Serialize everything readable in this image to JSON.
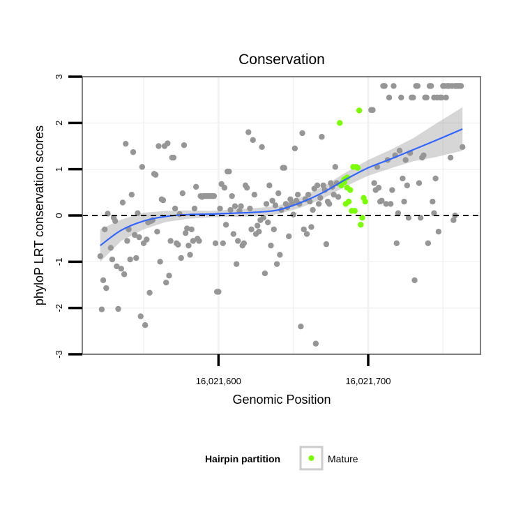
{
  "chart_data": {
    "type": "scatter",
    "title": "Conservation",
    "xlabel": "Genomic Position",
    "ylabel": "phyloP LRT conservation scores",
    "xlim": [
      16021509,
      16021775
    ],
    "ylim": [
      -3,
      3
    ],
    "x_ticks": [
      16021600,
      16021700
    ],
    "x_tick_labels": [
      "16,021,600",
      "16,021,700"
    ],
    "y_ticks": [
      -3,
      -2,
      -1,
      0,
      1,
      2,
      3
    ],
    "y_tick_labels": [
      "-3",
      "-2",
      "-1",
      "0",
      "1",
      "2",
      "3"
    ],
    "reference_line": {
      "y": 0,
      "style": "dashed",
      "color": "#000000"
    },
    "grid": true,
    "background_color": "#ffffff",
    "grid_color": "#f2f2f2",
    "legend": {
      "title": "Hairpin partition",
      "position": "bottom",
      "entries": [
        {
          "label": "Mature",
          "color": "#7cfc00"
        }
      ]
    },
    "series": [
      {
        "role": "other",
        "color": "#969696",
        "points": [
          [
            16021521,
            -0.88
          ],
          [
            16021522,
            -2.03
          ],
          [
            16021523,
            -1.4
          ],
          [
            16021524,
            -0.3
          ],
          [
            16021525,
            -1.57
          ],
          [
            16021526,
            0.04
          ],
          [
            16021528,
            -0.7
          ],
          [
            16021529,
            -0.95
          ],
          [
            16021530,
            -0.05
          ],
          [
            16021531,
            -0.12
          ],
          [
            16021532,
            -1.1
          ],
          [
            16021533,
            -2.02
          ],
          [
            16021535,
            -1.15
          ],
          [
            16021536,
            0.28
          ],
          [
            16021537,
            -1.27
          ],
          [
            16021538,
            1.55
          ],
          [
            16021539,
            -0.55
          ],
          [
            16021540,
            -0.3
          ],
          [
            16021541,
            -0.95
          ],
          [
            16021542,
            0.45
          ],
          [
            16021543,
            1.37
          ],
          [
            16021544,
            -0.42
          ],
          [
            16021545,
            -0.92
          ],
          [
            16021546,
            0.05
          ],
          [
            16021547,
            -0.47
          ],
          [
            16021548,
            -2.18
          ],
          [
            16021549,
            1.05
          ],
          [
            16021550,
            -0.6
          ],
          [
            16021551,
            -2.37
          ],
          [
            16021552,
            -0.52
          ],
          [
            16021553,
            -0.15
          ],
          [
            16021554,
            -1.67
          ],
          [
            16021555,
            -0.12
          ],
          [
            16021556,
            -0.1
          ],
          [
            16021557,
            0.9
          ],
          [
            16021558,
            0.88
          ],
          [
            16021559,
            -0.35
          ],
          [
            16021560,
            1.5
          ],
          [
            16021561,
            -1.0
          ],
          [
            16021562,
            0.35
          ],
          [
            16021563,
            0.33
          ],
          [
            16021564,
            1.5
          ],
          [
            16021565,
            -1.45
          ],
          [
            16021566,
            1.56
          ],
          [
            16021567,
            -1.3
          ],
          [
            16021568,
            -0.55
          ],
          [
            16021569,
            1.25
          ],
          [
            16021570,
            1.25
          ],
          [
            16021571,
            0.15
          ],
          [
            16021572,
            -0.6
          ],
          [
            16021573,
            -0.63
          ],
          [
            16021574,
            0.03
          ],
          [
            16021575,
            -0.92
          ],
          [
            16021576,
            0.48
          ],
          [
            16021577,
            1.52
          ],
          [
            16021578,
            -0.38
          ],
          [
            16021579,
            -0.28
          ],
          [
            16021580,
            -0.65
          ],
          [
            16021581,
            -0.85
          ],
          [
            16021582,
            -0.3
          ],
          [
            16021583,
            -0.55
          ],
          [
            16021584,
            0.15
          ],
          [
            16021585,
            0.62
          ],
          [
            16021586,
            -0.5
          ],
          [
            16021587,
            -0.55
          ],
          [
            16021588,
            0.42
          ],
          [
            16021589,
            0.4
          ],
          [
            16021590,
            0.42
          ],
          [
            16021591,
            0.42
          ],
          [
            16021592,
            0.42
          ],
          [
            16021593,
            0.42
          ],
          [
            16021594,
            0.42
          ],
          [
            16021595,
            0.42
          ],
          [
            16021596,
            0.42
          ],
          [
            16021597,
            0.42
          ],
          [
            16021598,
            -0.6
          ],
          [
            16021599,
            -1.65
          ],
          [
            16021600,
            -1.65
          ],
          [
            16021601,
            0.15
          ],
          [
            16021602,
            0.68
          ],
          [
            16021603,
            -0.6
          ],
          [
            16021604,
            0.6
          ],
          [
            16021605,
            -0.2
          ],
          [
            16021606,
            0.95
          ],
          [
            16021607,
            0.95
          ],
          [
            16021608,
            0.12
          ],
          [
            16021609,
            0.42
          ],
          [
            16021610,
            -0.4
          ],
          [
            16021611,
            0.2
          ],
          [
            16021612,
            -1.05
          ],
          [
            16021613,
            -0.55
          ],
          [
            16021614,
            0.1
          ],
          [
            16021615,
            0.2
          ],
          [
            16021616,
            -0.65
          ],
          [
            16021617,
            -0.6
          ],
          [
            16021618,
            0.65
          ],
          [
            16021619,
            0.6
          ],
          [
            16021620,
            1.8
          ],
          [
            16021621,
            0.15
          ],
          [
            16021622,
            -0.3
          ],
          [
            16021623,
            1.63
          ],
          [
            16021624,
            0.45
          ],
          [
            16021625,
            -0.4
          ],
          [
            16021626,
            -0.22
          ],
          [
            16021627,
            -0.35
          ],
          [
            16021628,
            -0.1
          ],
          [
            16021629,
            1.48
          ],
          [
            16021630,
            -0.05
          ],
          [
            16021631,
            -1.25
          ],
          [
            16021632,
            0.25
          ],
          [
            16021633,
            -0.15
          ],
          [
            16021634,
            0.65
          ],
          [
            16021635,
            -0.65
          ],
          [
            16021636,
            0.32
          ],
          [
            16021637,
            -0.3
          ],
          [
            16021638,
            0.22
          ],
          [
            16021639,
            -1.05
          ],
          [
            16021640,
            0.48
          ],
          [
            16021641,
            -0.85
          ],
          [
            16021642,
            0.12
          ],
          [
            16021643,
            1.03
          ],
          [
            16021644,
            1.03
          ],
          [
            16021645,
            0.25
          ],
          [
            16021646,
            0.18
          ],
          [
            16021647,
            -0.45
          ],
          [
            16021648,
            0.35
          ],
          [
            16021649,
            0.25
          ],
          [
            16021650,
            0.02
          ],
          [
            16021651,
            1.45
          ],
          [
            16021652,
            0.32
          ],
          [
            16021653,
            0.45
          ],
          [
            16021654,
            0.25
          ],
          [
            16021655,
            -2.4
          ],
          [
            16021656,
            1.78
          ],
          [
            16021657,
            -0.3
          ],
          [
            16021658,
            0.35
          ],
          [
            16021659,
            -0.4
          ],
          [
            16021660,
            0.45
          ],
          [
            16021661,
            0.3
          ],
          [
            16021662,
            -0.25
          ],
          [
            16021663,
            0.12
          ],
          [
            16021664,
            0.58
          ],
          [
            16021665,
            -2.77
          ],
          [
            16021666,
            0.65
          ],
          [
            16021667,
            0.25
          ],
          [
            16021668,
            0.38
          ],
          [
            16021669,
            1.7
          ],
          [
            16021670,
            0.65
          ],
          [
            16021671,
            0.55
          ],
          [
            16021672,
            -0.62
          ],
          [
            16021673,
            0.3
          ],
          [
            16021674,
            0.25
          ],
          [
            16021675,
            0.7
          ],
          [
            16021676,
            0.62
          ],
          [
            16021677,
            0.45
          ],
          [
            16021678,
            1.05
          ],
          [
            16021679,
            0.7
          ],
          [
            16021680,
            0.4
          ],
          [
            16021702,
            2.28
          ],
          [
            16021703,
            2.28
          ],
          [
            16021704,
            0.7
          ],
          [
            16021705,
            0.55
          ],
          [
            16021706,
            1.05
          ],
          [
            16021707,
            0.6
          ],
          [
            16021708,
            0.3
          ],
          [
            16021709,
            0.32
          ],
          [
            16021710,
            2.8
          ],
          [
            16021711,
            2.8
          ],
          [
            16021712,
            0.25
          ],
          [
            16021713,
            1.2
          ],
          [
            16021714,
            2.55
          ],
          [
            16021715,
            0.25
          ],
          [
            16021716,
            0.55
          ],
          [
            16021717,
            2.8
          ],
          [
            16021718,
            1.3
          ],
          [
            16021719,
            -0.6
          ],
          [
            16021720,
            0.05
          ],
          [
            16021721,
            1.4
          ],
          [
            16021722,
            2.55
          ],
          [
            16021723,
            0.8
          ],
          [
            16021724,
            0.3
          ],
          [
            16021725,
            1.2
          ],
          [
            16021726,
            0.65
          ],
          [
            16021727,
            -0.05
          ],
          [
            16021728,
            1.35
          ],
          [
            16021729,
            2.55
          ],
          [
            16021730,
            2.55
          ],
          [
            16021731,
            -1.4
          ],
          [
            16021732,
            2.8
          ],
          [
            16021733,
            2.8
          ],
          [
            16021734,
            0.7
          ],
          [
            16021735,
            -0.05
          ],
          [
            16021736,
            1.25
          ],
          [
            16021737,
            1.3
          ],
          [
            16021738,
            2.55
          ],
          [
            16021739,
            2.55
          ],
          [
            16021740,
            -0.6
          ],
          [
            16021741,
            2.8
          ],
          [
            16021742,
            2.8
          ],
          [
            16021743,
            0.3
          ],
          [
            16021744,
            2.55
          ],
          [
            16021745,
            0.8
          ],
          [
            16021746,
            2.55
          ],
          [
            16021747,
            -0.35
          ],
          [
            16021748,
            2.55
          ],
          [
            16021749,
            2.55
          ],
          [
            16021750,
            2.8
          ],
          [
            16021751,
            2.8
          ],
          [
            16021752,
            2.55
          ],
          [
            16021753,
            2.8
          ],
          [
            16021754,
            2.8
          ],
          [
            16021755,
            1.25
          ],
          [
            16021756,
            2.8
          ],
          [
            16021757,
            -0.1
          ],
          [
            16021758,
            2.8
          ],
          [
            16021759,
            2.8
          ],
          [
            16021760,
            2.8
          ],
          [
            16021761,
            2.8
          ],
          [
            16021762,
            2.8
          ],
          [
            16021763,
            1.48
          ],
          [
            16021758,
            0.0
          ],
          [
            16021744,
            0.05
          ]
        ]
      },
      {
        "role": "Mature",
        "color": "#7cfc00",
        "points": [
          [
            16021681,
            2.0
          ],
          [
            16021682,
            0.65
          ],
          [
            16021683,
            0.72
          ],
          [
            16021684,
            0.78
          ],
          [
            16021685,
            0.25
          ],
          [
            16021686,
            0.82
          ],
          [
            16021687,
            0.3
          ],
          [
            16021688,
            0.55
          ],
          [
            16021689,
            0.1
          ],
          [
            16021690,
            1.05
          ],
          [
            16021691,
            0.1
          ],
          [
            16021692,
            1.05
          ],
          [
            16021693,
            1.03
          ],
          [
            16021694,
            2.27
          ],
          [
            16021695,
            -0.2
          ],
          [
            16021696,
            -0.05
          ],
          [
            16021697,
            0.38
          ],
          [
            16021698,
            0.3
          ],
          [
            16021684,
            0.72
          ],
          [
            16021686,
            0.6
          ]
        ]
      }
    ],
    "smooth": {
      "method": "loess",
      "color": "#3366ff",
      "ribbon_color": "#999999",
      "x": [
        16021521,
        16021535,
        16021550,
        16021565,
        16021580,
        16021595,
        16021610,
        16021625,
        16021640,
        16021655,
        16021670,
        16021685,
        16021700,
        16021715,
        16021730,
        16021745,
        16021763
      ],
      "y": [
        -0.65,
        -0.32,
        -0.12,
        -0.02,
        0.02,
        0.03,
        0.05,
        0.07,
        0.12,
        0.28,
        0.5,
        0.78,
        1.03,
        1.22,
        1.42,
        1.62,
        1.87
      ],
      "lower": [
        -1.0,
        -0.55,
        -0.3,
        -0.14,
        -0.07,
        -0.04,
        -0.03,
        -0.02,
        0.03,
        0.17,
        0.37,
        0.63,
        0.86,
        1.02,
        1.17,
        1.26,
        1.4
      ],
      "upper": [
        -0.3,
        -0.09,
        0.06,
        0.1,
        0.11,
        0.1,
        0.13,
        0.16,
        0.21,
        0.39,
        0.63,
        0.93,
        1.2,
        1.42,
        1.67,
        1.98,
        2.34
      ]
    }
  }
}
